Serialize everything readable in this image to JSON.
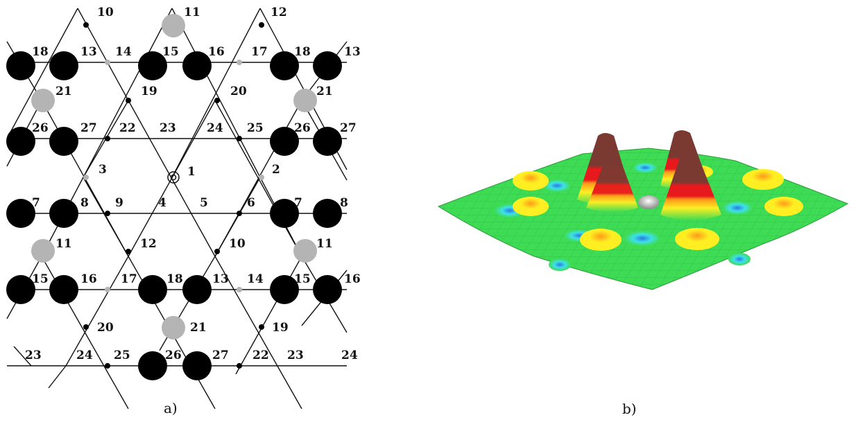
{
  "caption_a": "a)",
  "caption_b": "b)",
  "center_label": "1",
  "colors": {
    "black_atom": "#000000",
    "gray_atom": "#b4b4b4",
    "small_gray_dot": "#b4b4b4",
    "surface_green": "#3ddc54",
    "surface_yellow": "#ffee22",
    "surface_orange": "#ff9a1a",
    "surface_red": "#e8191c",
    "surface_brown": "#7a3a32",
    "surface_cyan": "#3ee0e8",
    "surface_blue": "#2a7be0"
  },
  "lattice_labels": [
    "10",
    "11",
    "12",
    "18",
    "13",
    "14",
    "15",
    "16",
    "17",
    "18",
    "13",
    "21",
    "19",
    "20",
    "21",
    "26",
    "27",
    "22",
    "23",
    "24",
    "25",
    "26",
    "27",
    "3",
    "1",
    "2",
    "7",
    "8",
    "9",
    "4",
    "5",
    "6",
    "7",
    "8",
    "11",
    "12",
    "10",
    "11",
    "15",
    "16",
    "17",
    "18",
    "13",
    "14",
    "15",
    "16",
    "20",
    "21",
    "19",
    "23",
    "24",
    "25",
    "26",
    "27",
    "22",
    "23",
    "24"
  ]
}
